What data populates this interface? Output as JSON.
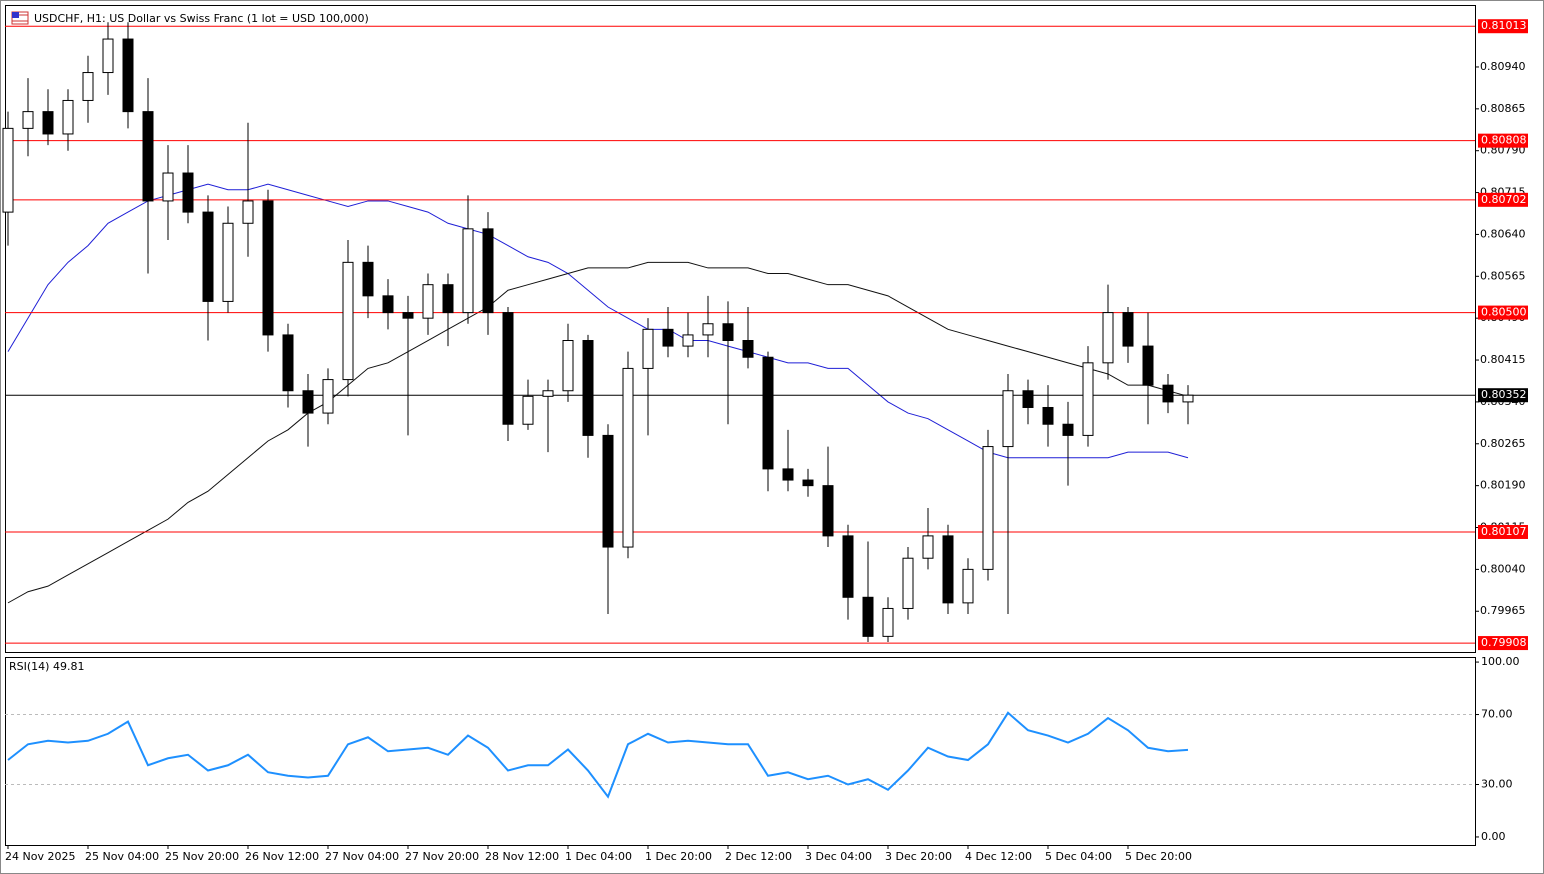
{
  "chart_data": [
    {
      "type": "candlestick",
      "title": "USDCHF, H1:  US Dollar vs Swiss Franc (1 lot = USD 100,000)",
      "categories": [
        "24 Nov 2025",
        null,
        null,
        null,
        "25 Nov 04:00",
        null,
        null,
        null,
        "25 Nov 20:00",
        null,
        null,
        null,
        "26 Nov 12:00",
        null,
        null,
        null,
        "27 Nov 04:00",
        null,
        null,
        null,
        "27 Nov 20:00",
        null,
        null,
        null,
        "28 Nov 12:00",
        null,
        null,
        null,
        "1 Dec 04:00",
        null,
        null,
        null,
        "1 Dec 20:00",
        null,
        null,
        null,
        "2 Dec 12:00",
        null,
        null,
        null,
        "3 Dec 04:00",
        null,
        null,
        null,
        "3 Dec 20:00",
        null,
        null,
        null,
        "4 Dec 12:00",
        null,
        null,
        null,
        "5 Dec 04:00",
        null,
        null,
        null,
        "5 Dec 20:00",
        null,
        null,
        null
      ],
      "open": [
        0.8068,
        0.8083,
        0.8086,
        0.8082,
        0.8088,
        0.8093,
        0.8099,
        0.8086,
        0.807,
        0.8075,
        0.8068,
        0.8052,
        0.8066,
        0.807,
        0.8046,
        0.8036,
        0.8032,
        0.8038,
        0.8059,
        0.8053,
        0.805,
        0.8049,
        0.8055,
        0.805,
        0.8065,
        0.805,
        0.803,
        0.8035,
        0.8036,
        0.8045,
        0.8028,
        0.8008,
        0.804,
        0.8047,
        0.8044,
        0.8046,
        0.8048,
        0.8045,
        0.8042,
        0.8022,
        0.802,
        0.8019,
        0.801,
        0.7999,
        0.7992,
        0.7997,
        0.8006,
        0.801,
        0.7998,
        0.8004,
        0.8026,
        0.8036,
        0.8033,
        0.803,
        0.8028,
        0.8041,
        0.805,
        0.8044,
        0.8037,
        0.8034
      ],
      "high": [
        0.8086,
        0.8092,
        0.809,
        0.809,
        0.8096,
        0.8102,
        0.8102,
        0.8092,
        0.808,
        0.808,
        0.8071,
        0.8069,
        0.8084,
        0.8072,
        0.8048,
        0.8039,
        0.804,
        0.8063,
        0.8062,
        0.8056,
        0.8053,
        0.8057,
        0.8057,
        0.8071,
        0.8068,
        0.8051,
        0.8038,
        0.8038,
        0.8048,
        0.8046,
        0.803,
        0.8043,
        0.8049,
        0.8051,
        0.805,
        0.8053,
        0.8052,
        0.8051,
        0.8043,
        0.8029,
        0.8022,
        0.8026,
        0.8012,
        0.8009,
        0.7999,
        0.8008,
        0.8015,
        0.8012,
        0.8006,
        0.8029,
        0.8039,
        0.8038,
        0.8037,
        0.8034,
        0.8044,
        0.8055,
        0.8051,
        0.805,
        0.8039,
        0.8037
      ],
      "low": [
        0.8062,
        0.8078,
        0.808,
        0.8079,
        0.8084,
        0.8089,
        0.8083,
        0.8057,
        0.8063,
        0.8066,
        0.8045,
        0.805,
        0.806,
        0.8043,
        0.8033,
        0.8026,
        0.803,
        0.8035,
        0.8049,
        0.8047,
        0.8028,
        0.8046,
        0.8044,
        0.8048,
        0.8046,
        0.8027,
        0.8029,
        0.8025,
        0.8034,
        0.8024,
        0.7996,
        0.8006,
        0.8028,
        0.8042,
        0.8042,
        0.8042,
        0.803,
        0.804,
        0.8018,
        0.8018,
        0.8017,
        0.8008,
        0.7995,
        0.7991,
        0.7991,
        0.7995,
        0.8004,
        0.7996,
        0.7996,
        0.8002,
        0.7996,
        0.803,
        0.8026,
        0.8019,
        0.8026,
        0.8038,
        0.8041,
        0.803,
        0.8032,
        0.803
      ],
      "close": [
        0.8083,
        0.8086,
        0.8082,
        0.8088,
        0.8093,
        0.8099,
        0.8086,
        0.807,
        0.8075,
        0.8068,
        0.8052,
        0.8066,
        0.807,
        0.8046,
        0.8036,
        0.8032,
        0.8038,
        0.8059,
        0.8053,
        0.805,
        0.8049,
        0.8055,
        0.805,
        0.8065,
        0.805,
        0.803,
        0.8035,
        0.8036,
        0.8045,
        0.8028,
        0.8008,
        0.804,
        0.8047,
        0.8044,
        0.8046,
        0.8048,
        0.8045,
        0.8042,
        0.8022,
        0.802,
        0.8019,
        0.801,
        0.7999,
        0.7992,
        0.7997,
        0.8006,
        0.801,
        0.7998,
        0.8004,
        0.8026,
        0.8036,
        0.8033,
        0.803,
        0.8028,
        0.8041,
        0.805,
        0.8044,
        0.8037,
        0.8034,
        0.80352
      ],
      "up_color": "#ffffff",
      "down_color": "#000000",
      "lines": [
        {
          "color": "#1f1fd6",
          "values": [
            0.8043,
            0.8049,
            0.8055,
            0.8059,
            0.8062,
            0.8066,
            0.8068,
            0.807,
            0.8071,
            0.8072,
            0.8073,
            0.8072,
            0.8072,
            0.8073,
            0.8072,
            0.8071,
            0.807,
            0.8069,
            0.807,
            0.807,
            0.8069,
            0.8068,
            0.8066,
            0.8065,
            0.8064,
            0.8062,
            0.806,
            0.8059,
            0.8057,
            0.8054,
            0.8051,
            0.8049,
            0.8047,
            0.8047,
            0.8045,
            0.8045,
            0.8044,
            0.8043,
            0.8042,
            0.8041,
            0.8041,
            0.804,
            0.804,
            0.8037,
            0.8034,
            0.8032,
            0.8031,
            0.8029,
            0.8027,
            0.8025,
            0.8024,
            0.8024,
            0.8024,
            0.8024,
            0.8024,
            0.8024,
            0.8025,
            0.8025,
            0.8025,
            0.8024
          ]
        },
        {
          "color": "#111111",
          "values": [
            0.7998,
            0.8,
            0.8001,
            0.8003,
            0.8005,
            0.8007,
            0.8009,
            0.8011,
            0.8013,
            0.8016,
            0.8018,
            0.8021,
            0.8024,
            0.8027,
            0.8029,
            0.8032,
            0.8034,
            0.8037,
            0.804,
            0.8041,
            0.8043,
            0.8045,
            0.8047,
            0.8049,
            0.8051,
            0.8054,
            0.8055,
            0.8056,
            0.8057,
            0.8058,
            0.8058,
            0.8058,
            0.8059,
            0.8059,
            0.8059,
            0.8058,
            0.8058,
            0.8058,
            0.8057,
            0.8057,
            0.8056,
            0.8055,
            0.8055,
            0.8054,
            0.8053,
            0.8051,
            0.8049,
            0.8047,
            0.8046,
            0.8045,
            0.8044,
            0.8043,
            0.8042,
            0.8041,
            0.804,
            0.8039,
            0.8037,
            0.8037,
            0.8036,
            0.8035
          ]
        }
      ],
      "levels": [
        0.81013,
        0.80808,
        0.80702,
        {
          "value": 0.805,
          "label": "0.80500"
        },
        0.80107,
        0.79908
      ],
      "level_color": "#ff0000",
      "current_price": 0.80352,
      "ylim": [
        0.79892,
        0.81051
      ],
      "yticks": [
        {
          "value": 0.8094,
          "label": "0.80940"
        },
        0.80865,
        {
          "value": 0.8079,
          "label": "0.80790"
        },
        0.80715,
        {
          "value": 0.8064,
          "label": "0.80640"
        },
        0.80565,
        {
          "value": 0.8049,
          "label": "0.80490"
        },
        0.80415,
        {
          "value": 0.8034,
          "label": "0.80340"
        },
        0.80265,
        {
          "value": 0.8019,
          "label": "0.80190"
        },
        0.80115,
        {
          "value": 0.8004,
          "label": "0.80040"
        },
        0.79965
      ]
    },
    {
      "type": "line",
      "title": "RSI(14) 49.81",
      "color": "#1e90ff",
      "values": [
        44,
        53,
        55,
        54,
        55,
        59,
        66,
        41,
        45,
        47,
        38,
        41,
        47,
        37,
        35,
        34,
        35,
        53,
        57,
        49,
        50,
        51,
        47,
        58,
        51,
        38,
        41,
        41,
        50,
        38,
        23,
        53,
        59,
        54,
        55,
        54,
        53,
        53,
        35,
        37,
        33,
        35,
        30,
        33,
        27,
        38,
        51,
        46,
        44,
        53,
        71,
        61,
        58,
        54,
        59,
        68,
        61,
        51,
        49,
        49.81
      ],
      "ylim": [
        -4.6,
        102.9
      ],
      "yticks": [
        {
          "value": 100,
          "label": "100.00"
        },
        {
          "value": 70,
          "label": "70.00"
        },
        {
          "value": 30,
          "label": "30.00"
        },
        {
          "value": 0,
          "label": "0.00"
        }
      ],
      "dashed_levels": [
        70,
        30
      ]
    }
  ]
}
